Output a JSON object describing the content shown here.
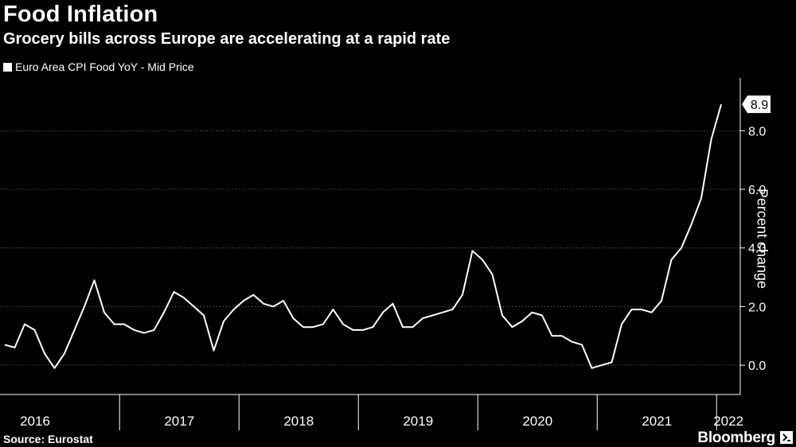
{
  "header": {
    "title": "Food Inflation",
    "subtitle": "Grocery bills across Europe are accelerating at a rapid rate"
  },
  "footer": {
    "source": "Source: Eurostat",
    "brand": "Bloomberg"
  },
  "chart_data": {
    "type": "line",
    "title": "Food Inflation",
    "subtitle": "Grocery bills across Europe are accelerating at a rapid rate",
    "legend": [
      "Euro Area CPI Food YoY - Mid Price"
    ],
    "ylabel": "Percent change",
    "xlabel": "",
    "ylim": [
      -1.0,
      9.8
    ],
    "yticks": [
      0.0,
      2.0,
      4.0,
      6.0,
      8.0
    ],
    "ytick_labels": [
      "0.0",
      "2.0",
      "4.0",
      "6.0",
      "8.0"
    ],
    "year_labels": [
      "2016",
      "2017",
      "2018",
      "2019",
      "2020",
      "2021",
      "2022"
    ],
    "x_start": "2016-01",
    "last_value_label": "8.9",
    "series": [
      {
        "name": "Euro Area CPI Food YoY - Mid Price",
        "color": "#ffffff",
        "values": [
          0.7,
          0.6,
          1.4,
          1.2,
          0.4,
          -0.1,
          0.4,
          1.2,
          2.0,
          2.9,
          1.8,
          1.4,
          1.4,
          1.2,
          1.1,
          1.2,
          1.8,
          2.5,
          2.3,
          2.0,
          1.7,
          0.5,
          1.5,
          1.9,
          2.2,
          2.4,
          2.1,
          2.0,
          2.2,
          1.6,
          1.3,
          1.3,
          1.4,
          1.9,
          1.4,
          1.2,
          1.2,
          1.3,
          1.8,
          2.1,
          1.3,
          1.3,
          1.6,
          1.7,
          1.8,
          1.9,
          2.4,
          3.9,
          3.6,
          3.1,
          1.7,
          1.3,
          1.5,
          1.8,
          1.7,
          1.0,
          1.0,
          0.8,
          0.7,
          -0.1,
          0.0,
          0.1,
          1.4,
          1.9,
          1.9,
          1.8,
          2.2,
          3.6,
          4.0,
          4.8,
          5.7,
          7.7,
          8.9
        ]
      }
    ]
  }
}
